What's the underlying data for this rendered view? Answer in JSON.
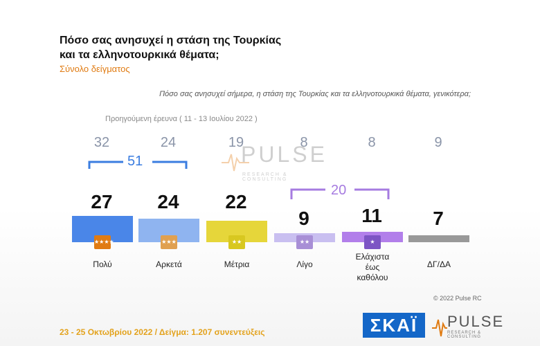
{
  "header": {
    "title_line1": "Πόσο σας ανησυχεί η στάση της Τουρκίας",
    "title_line2": "και τα ελληνοτουρκικά θέματα;",
    "subtitle": "Σύνολο δείγματος",
    "question": "Πόσο σας ανησυχεί σήμερα, η στάση της Τουρκίας και τα ελληνοτουρκικά θέματα, γενικότερα;"
  },
  "previous_survey": {
    "label": "Προηγούμενη έρευνα  ( 11 - 13 Ιουλίου  2022 )"
  },
  "groups": {
    "left_total": "51",
    "left_color": "#3b7de0",
    "right_total": "20",
    "right_color": "#a67be0"
  },
  "colors": {
    "Πολύ": "#4a86e8",
    "Αρκετά": "#8fb4f0",
    "Μέτρια": "#e6d63a",
    "Λίγο": "#c9bff0",
    "Ελάχιστα": "#b27fea",
    "ΔΓ/ΔΑ": "#999999",
    "badge_blue": "#e07b12",
    "badge_yellow": "#d8c820",
    "badge_purple": "#a88fd6",
    "badge_dark_purple": "#7d55c4"
  },
  "chart_data": {
    "type": "bar",
    "categories": [
      "Πολύ",
      "Αρκετά",
      "Μέτρια",
      "Λίγο",
      "Ελάχιστα έως καθόλου",
      "ΔΓ/ΔΑ"
    ],
    "series": [
      {
        "values": [
          27,
          24,
          22,
          9,
          11,
          7
        ]
      },
      {
        "name": "Προηγούμενη έρευνα  ( 11 - 13 Ιουλίου  2022 )",
        "values": [
          32,
          24,
          19,
          8,
          8,
          9
        ]
      }
    ],
    "ylim": [
      0,
      60
    ]
  },
  "labels": {
    "cat0": "Πολύ",
    "cat1": "Αρκετά",
    "cat2": "Μέτρια",
    "cat3": "Λίγο",
    "cat4_line1": "Ελάχιστα",
    "cat4_line2": "έως",
    "cat4_line3": "καθόλου",
    "cat5": "ΔΓ/ΔΑ",
    "val0": "27",
    "val1": "24",
    "val2": "22",
    "val3": "9",
    "val4": "11",
    "val5": "7",
    "prev0": "32",
    "prev1": "24",
    "prev2": "19",
    "prev3": "8",
    "prev4": "8",
    "prev5": "9"
  },
  "footer": {
    "copyright": "© 2022 Pulse RC",
    "fieldwork": "23 - 25  Οκτωβρίου  2022  /  Δείγμα:  1.207 συνεντεύξεις"
  },
  "logos": {
    "skai": "ΣΚΑΪ",
    "pulse": "PULSE",
    "pulse_sub": "RESEARCH & CONSULTING",
    "watermark": "PULSE",
    "watermark_sub": "RESEARCH & CONSULTING"
  }
}
